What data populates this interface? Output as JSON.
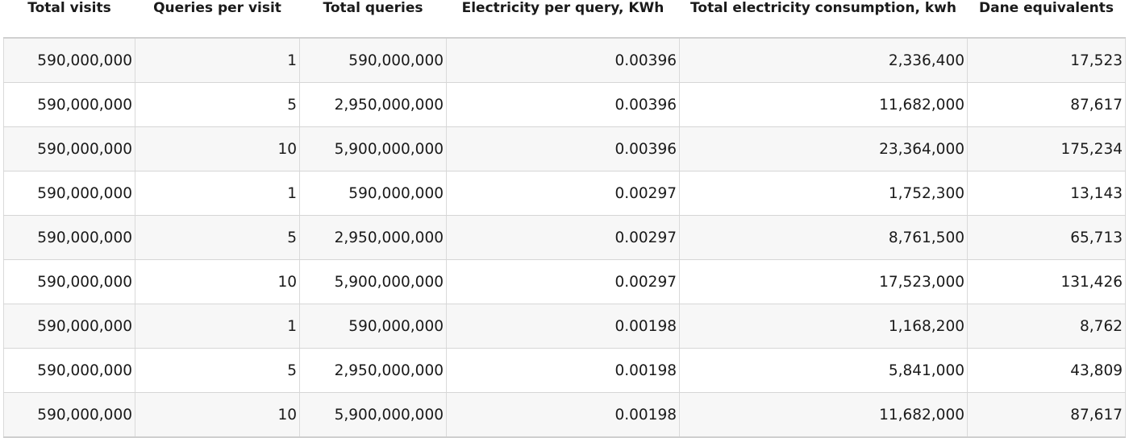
{
  "table": {
    "columns": [
      "Total visits",
      "Queries per visit",
      "Total queries",
      "Electricity per query, KWh",
      "Total electricity consumption, kwh",
      "Dane equivalents"
    ],
    "rows": [
      [
        "590,000,000",
        "1",
        "590,000,000",
        "0.00396",
        "2,336,400",
        "17,523"
      ],
      [
        "590,000,000",
        "5",
        "2,950,000,000",
        "0.00396",
        "11,682,000",
        "87,617"
      ],
      [
        "590,000,000",
        "10",
        "5,900,000,000",
        "0.00396",
        "23,364,000",
        "175,234"
      ],
      [
        "590,000,000",
        "1",
        "590,000,000",
        "0.00297",
        "1,752,300",
        "13,143"
      ],
      [
        "590,000,000",
        "5",
        "2,950,000,000",
        "0.00297",
        "8,761,500",
        "65,713"
      ],
      [
        "590,000,000",
        "10",
        "5,900,000,000",
        "0.00297",
        "17,523,000",
        "131,426"
      ],
      [
        "590,000,000",
        "1",
        "590,000,000",
        "0.00198",
        "1,168,200",
        "8,762"
      ],
      [
        "590,000,000",
        "5",
        "2,950,000,000",
        "0.00198",
        "5,841,000",
        "43,809"
      ],
      [
        "590,000,000",
        "10",
        "5,900,000,000",
        "0.00198",
        "11,682,000",
        "87,617"
      ]
    ]
  }
}
